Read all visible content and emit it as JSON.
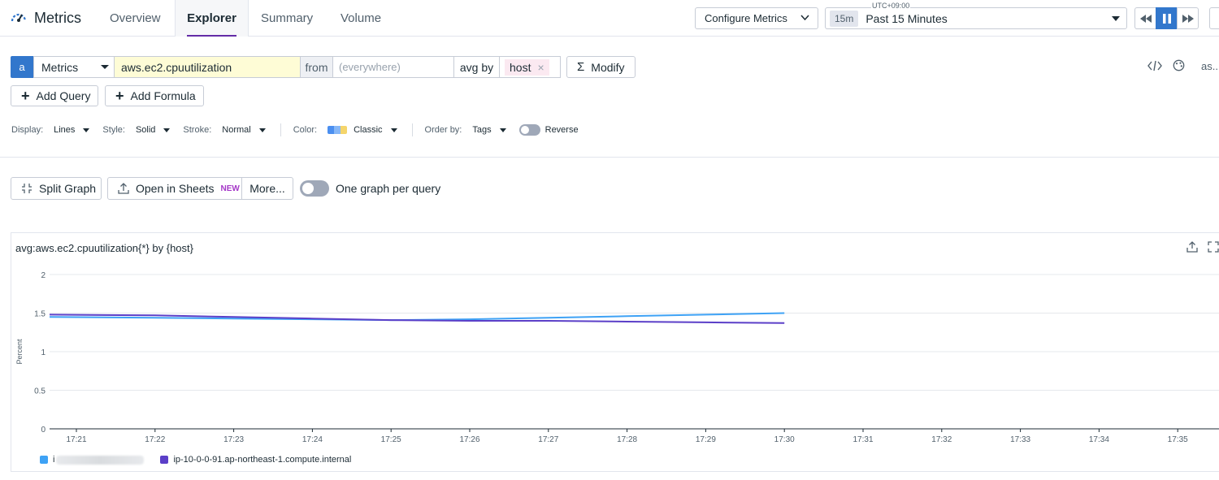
{
  "nav": {
    "app_title": "Metrics",
    "tabs": [
      {
        "label": "Overview"
      },
      {
        "label": "Explorer",
        "active": true
      },
      {
        "label": "Summary"
      },
      {
        "label": "Volume"
      }
    ],
    "configure_label": "Configure Metrics",
    "timezone": "UTC+09:00",
    "time_badge": "15m",
    "time_range": "Past 15 Minutes",
    "accent_color": "#632ca6"
  },
  "query": {
    "letter": "a",
    "source": "Metrics",
    "metric": "aws.ec2.cpuutilization",
    "from_label": "from",
    "from_placeholder": "(everywhere)",
    "agg_label": "avg by",
    "group_tag": "host",
    "modify_label": "Modify",
    "more_label": "as..."
  },
  "actions": {
    "add_query": "Add Query",
    "add_formula": "Add Formula"
  },
  "display_options": {
    "display_label": "Display:",
    "display_value": "Lines",
    "style_label": "Style:",
    "style_value": "Solid",
    "stroke_label": "Stroke:",
    "stroke_value": "Normal",
    "color_label": "Color:",
    "color_value": "Classic",
    "order_label": "Order by:",
    "order_value": "Tags",
    "reverse_label": "Reverse",
    "palette": [
      "#4b8ff0",
      "#86b7f7",
      "#f5d56b"
    ]
  },
  "graph_toolbar": {
    "split_graph": "Split Graph",
    "open_in_sheets": "Open in Sheets",
    "new_badge": "NEW",
    "more": "More...",
    "one_graph_per_query": "One graph per query"
  },
  "graph": {
    "title": "avg:aws.ec2.cpuutilization{*} by {host}",
    "legend": [
      {
        "label": "i",
        "color": "#3ea2f5"
      },
      {
        "label": "ip-10-0-0-91.ap-northeast-1.compute.internal",
        "color": "#5b3fc8"
      }
    ]
  },
  "chart_data": {
    "type": "line",
    "ylabel": "Percent",
    "ylim": [
      0,
      2
    ],
    "yticks": [
      "0",
      "0.5",
      "1",
      "1.5",
      "2"
    ],
    "x": [
      "17:21",
      "17:22",
      "17:23",
      "17:24",
      "17:25",
      "17:26",
      "17:27",
      "17:28",
      "17:29",
      "17:30",
      "17:31",
      "17:32",
      "17:33",
      "17:34",
      "17:35"
    ],
    "series": [
      {
        "name": "i",
        "color": "#3ea2f5",
        "values": [
          1.45,
          1.44,
          1.43,
          1.42,
          1.41,
          1.42,
          1.44,
          1.46,
          1.48,
          1.5,
          null,
          null,
          null,
          null,
          null
        ]
      },
      {
        "name": "ip-10-0-0-91.ap-northeast-1.compute.internal",
        "color": "#5b3fc8",
        "values": [
          1.48,
          1.47,
          1.45,
          1.43,
          1.41,
          1.4,
          1.4,
          1.39,
          1.38,
          1.37,
          null,
          null,
          null,
          null,
          null
        ]
      }
    ],
    "grid": true,
    "legend_position": "bottom-left"
  }
}
